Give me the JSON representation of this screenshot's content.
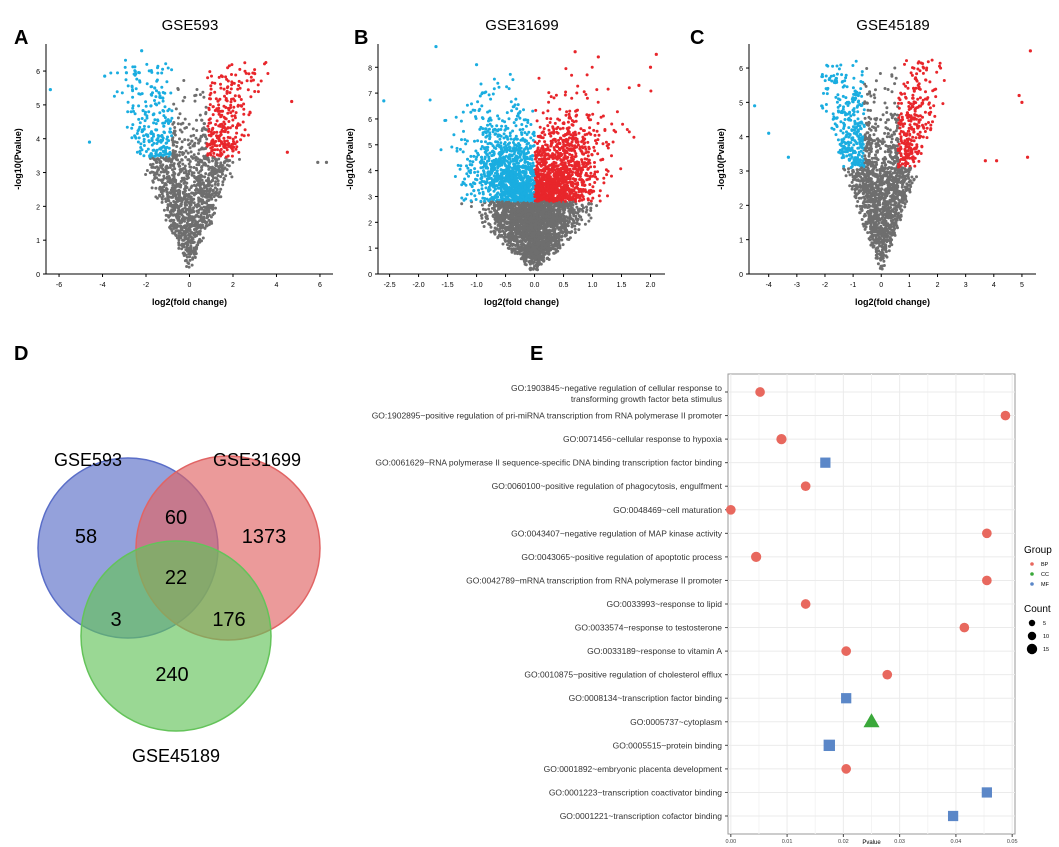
{
  "panel_letters": [
    "A",
    "B",
    "C",
    "D",
    "E"
  ],
  "chart_data": [
    {
      "panel": "A",
      "type": "scatter",
      "title": "GSE593",
      "xlabel": "log2(fold change)",
      "ylabel": "-log10(Pvalue)",
      "xlim": [
        -6.6,
        6.6
      ],
      "ylim": [
        0,
        6.8
      ],
      "xticks": [
        -6,
        -4,
        -2,
        0,
        2,
        4,
        6
      ],
      "yticks": [
        0,
        1,
        2,
        3,
        4,
        5,
        6
      ],
      "threshold": 3.45,
      "fc_cut": 0.8,
      "scale": 2.0,
      "n_points": 1700,
      "series": [
        {
          "name": "down",
          "color": "#1aade0"
        },
        {
          "name": "ns",
          "color": "#6e6e6e"
        },
        {
          "name": "up",
          "color": "#e8262b"
        }
      ],
      "extreme_points": [
        [
          -6.4,
          5.45
        ],
        [
          -4.6,
          3.9
        ],
        [
          -3.9,
          5.85
        ],
        [
          -2.9,
          5.95
        ],
        [
          -2.2,
          6.6
        ],
        [
          -1.6,
          5.5
        ],
        [
          4.7,
          5.1
        ],
        [
          4.5,
          3.6
        ],
        [
          5.9,
          3.3
        ],
        [
          6.3,
          3.3
        ]
      ]
    },
    {
      "panel": "B",
      "type": "scatter",
      "title": "GSE31699",
      "xlabel": "log2(fold change)",
      "ylabel": "-log10(Pvalue)",
      "xlim": [
        -2.7,
        2.25
      ],
      "ylim": [
        0,
        8.9
      ],
      "xticks": [
        -2.5,
        -2.0,
        -1.5,
        -1.0,
        -0.5,
        0.0,
        0.5,
        1.0,
        1.5,
        2.0
      ],
      "yticks": [
        0,
        1,
        2,
        3,
        4,
        5,
        6,
        7,
        8
      ],
      "threshold": 2.8,
      "fc_cut": 0.0,
      "scale": 0.75,
      "n_points": 4500,
      "series": [
        {
          "name": "down",
          "color": "#1aade0"
        },
        {
          "name": "ns",
          "color": "#6e6e6e"
        },
        {
          "name": "up",
          "color": "#e8262b"
        }
      ],
      "extreme_points": [
        [
          -1.7,
          8.8
        ],
        [
          -1.0,
          8.1
        ],
        [
          -2.6,
          6.7
        ],
        [
          2.1,
          8.5
        ],
        [
          2.0,
          8.0
        ],
        [
          0.7,
          8.6
        ],
        [
          1.1,
          8.4
        ],
        [
          1.8,
          7.3
        ]
      ]
    },
    {
      "panel": "C",
      "type": "scatter",
      "title": "GSE45189",
      "xlabel": "log2(fold change)",
      "ylabel": "-log10(Pvalue)",
      "xlim": [
        -4.7,
        5.5
      ],
      "ylim": [
        0,
        6.7
      ],
      "xticks": [
        -4,
        -3,
        -2,
        -1,
        0,
        1,
        2,
        3,
        4,
        5
      ],
      "yticks": [
        0,
        1,
        2,
        3,
        4,
        5,
        6
      ],
      "threshold": 3.1,
      "fc_cut": 0.6,
      "scale": 1.3,
      "n_points": 2000,
      "series": [
        {
          "name": "down",
          "color": "#1aade0"
        },
        {
          "name": "ns",
          "color": "#6e6e6e"
        },
        {
          "name": "up",
          "color": "#e8262b"
        }
      ],
      "extreme_points": [
        [
          -4.5,
          4.9
        ],
        [
          -4.0,
          4.1
        ],
        [
          -3.3,
          3.4
        ],
        [
          5.3,
          6.5
        ],
        [
          4.9,
          5.2
        ],
        [
          5.0,
          5.0
        ],
        [
          5.2,
          3.4
        ],
        [
          4.1,
          3.3
        ],
        [
          3.7,
          3.3
        ]
      ]
    },
    {
      "panel": "D",
      "type": "venn",
      "sets": [
        {
          "name": "GSE593",
          "color": "#5a6ec8"
        },
        {
          "name": "GSE31699",
          "color": "#e16464"
        },
        {
          "name": "GSE45189",
          "color": "#64c35a"
        }
      ],
      "regions": {
        "GSE593_only": 58,
        "GSE31699_only": 1373,
        "GSE45189_only": 240,
        "GSE593_GSE31699": 60,
        "GSE593_GSE45189": 3,
        "GSE31699_GSE45189": 176,
        "all_three": 22
      }
    },
    {
      "panel": "E",
      "type": "scatter",
      "xlabel": "Pvalue",
      "xlim": [
        -0.0005,
        0.0505
      ],
      "xticks": [
        0.0,
        0.01,
        0.02,
        0.03,
        0.04,
        0.05
      ],
      "xtick_labels": [
        "0.00",
        "0.01",
        "0.02",
        "0.03",
        "0.04",
        "0.05"
      ],
      "legend": {
        "group_title": "Group",
        "groups": [
          {
            "name": "BP",
            "color": "#e8685e",
            "shape": "circle"
          },
          {
            "name": "CC",
            "color": "#3aa83a",
            "shape": "triangle"
          },
          {
            "name": "MF",
            "color": "#5b87c8",
            "shape": "square"
          }
        ],
        "count_title": "Count",
        "counts": [
          5,
          10,
          15
        ],
        "position": "right"
      },
      "terms": [
        {
          "label": "GO:1903845~negative regulation of cellular response to\ntransforming growth factor beta stimulus",
          "pvalue": 0.0052,
          "group": "BP",
          "count": 8
        },
        {
          "label": "GO:1902895~positive regulation of pri-miRNA transcription from RNA polymerase II promoter",
          "pvalue": 0.0488,
          "group": "BP",
          "count": 8
        },
        {
          "label": "GO:0071456~cellular response to hypoxia",
          "pvalue": 0.009,
          "group": "BP",
          "count": 9
        },
        {
          "label": "GO:0061629~RNA polymerase II sequence-specific DNA binding transcription factor binding",
          "pvalue": 0.0168,
          "group": "MF",
          "count": 9
        },
        {
          "label": "GO:0060100~positive regulation of phagocytosis, engulfment",
          "pvalue": 0.0133,
          "group": "BP",
          "count": 8
        },
        {
          "label": "GO:0048469~cell maturation",
          "pvalue": 0.0,
          "group": "BP",
          "count": 8
        },
        {
          "label": "GO:0043407~negative regulation of MAP kinase activity",
          "pvalue": 0.0455,
          "group": "BP",
          "count": 8
        },
        {
          "label": "GO:0043065~positive regulation of apoptotic process",
          "pvalue": 0.0045,
          "group": "BP",
          "count": 9
        },
        {
          "label": "GO:0042789~mRNA transcription from RNA polymerase II promoter",
          "pvalue": 0.0455,
          "group": "BP",
          "count": 8
        },
        {
          "label": "GO:0033993~response to lipid",
          "pvalue": 0.0133,
          "group": "BP",
          "count": 8
        },
        {
          "label": "GO:0033574~response to testosterone",
          "pvalue": 0.0415,
          "group": "BP",
          "count": 8
        },
        {
          "label": "GO:0033189~response to vitamin A",
          "pvalue": 0.0205,
          "group": "BP",
          "count": 8
        },
        {
          "label": "GO:0010875~positive regulation of cholesterol efflux",
          "pvalue": 0.0278,
          "group": "BP",
          "count": 8
        },
        {
          "label": "GO:0008134~transcription factor binding",
          "pvalue": 0.0205,
          "group": "MF",
          "count": 9
        },
        {
          "label": "GO:0005737~cytoplasm",
          "pvalue": 0.025,
          "group": "CC",
          "count": 14
        },
        {
          "label": "GO:0005515~protein binding",
          "pvalue": 0.0175,
          "group": "MF",
          "count": 11
        },
        {
          "label": "GO:0001892~embryonic placenta development",
          "pvalue": 0.0205,
          "group": "BP",
          "count": 8
        },
        {
          "label": "GO:0001223~transcription coactivator binding",
          "pvalue": 0.0455,
          "group": "MF",
          "count": 9
        },
        {
          "label": "GO:0001221~transcription cofactor binding",
          "pvalue": 0.0395,
          "group": "MF",
          "count": 9
        }
      ]
    }
  ]
}
